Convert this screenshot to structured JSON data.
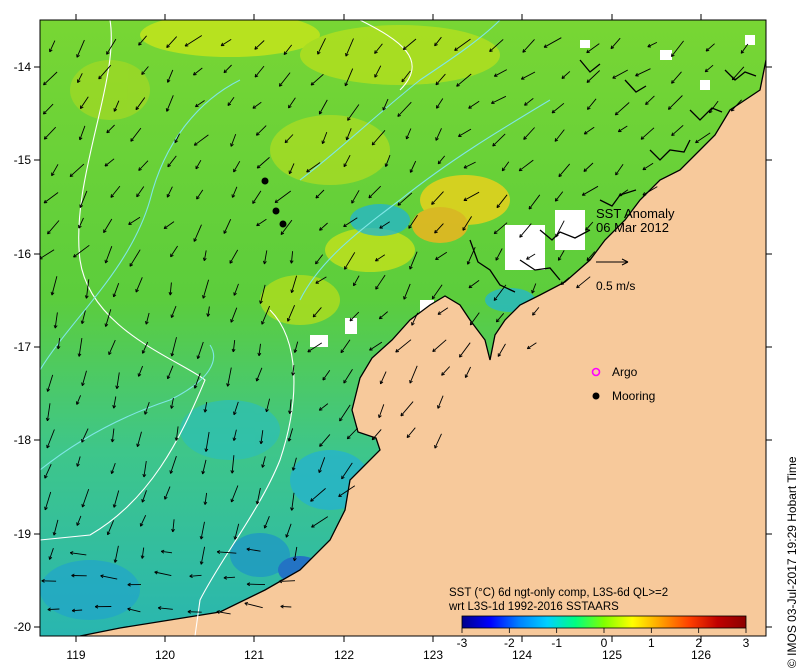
{
  "map": {
    "title": "SST Anomaly",
    "date": "06 Mar 2012",
    "lat_ticks": [
      "-14",
      "-15",
      "-16",
      "-17",
      "-18",
      "-19",
      "-20"
    ],
    "lon_ticks": [
      "119",
      "120",
      "121",
      "122",
      "123",
      "124",
      "125",
      "126"
    ],
    "scale_label": "0.5 m/s",
    "credit": "© IMOS 03-Jul-2017 19:29 Hobart Time"
  },
  "legend": {
    "argo_label": "Argo",
    "mooring_label": "Mooring",
    "argo_color": "#ff00ff",
    "mooring_color": "#000000"
  },
  "colorbar": {
    "line1": "SST (°C) 6d ngt-only comp, L3S-6d QL>=2",
    "line2": "wrt L3S-1d 1992-2016 SSTAARS",
    "ticks": [
      "-3",
      "-2",
      "-1",
      "0",
      "1",
      "2",
      "3"
    ],
    "colors": [
      "#00008b",
      "#0000ff",
      "#0080ff",
      "#00d0ff",
      "#00ff80",
      "#80ff00",
      "#ffff00",
      "#ffa000",
      "#ff4000",
      "#c00000",
      "#8b0000"
    ]
  },
  "colors": {
    "land": "#f7c99b",
    "ocean_warm": "#6cd23a",
    "ocean_cool": "#2ec5a0",
    "coast": "#000000"
  }
}
